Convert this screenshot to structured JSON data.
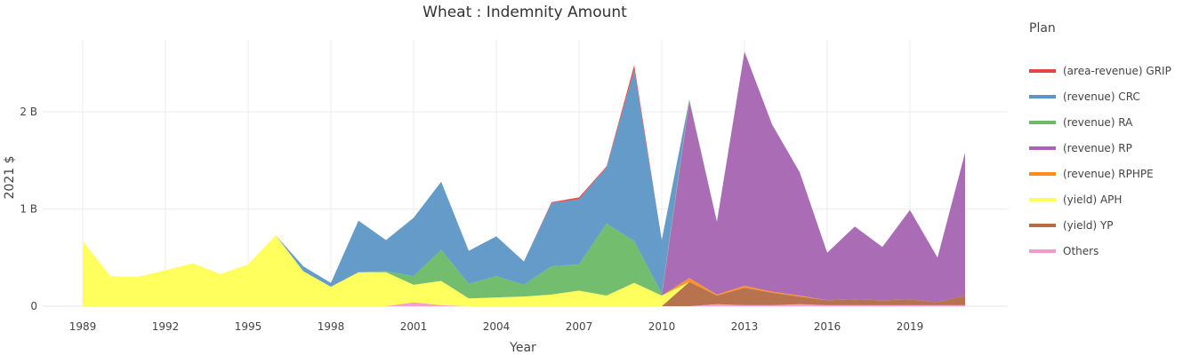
{
  "chart_data": {
    "type": "area",
    "title": "Wheat : Indemnity Amount",
    "xlabel": "Year",
    "ylabel": "2021 $",
    "legend_title": "Plan",
    "legend_position": "right",
    "grid": true,
    "stacked": true,
    "xlim": [
      1989,
      2021
    ],
    "ylim": [
      0,
      2.75
    ],
    "unit": "B",
    "x_ticks": [
      1989,
      1992,
      1995,
      1998,
      2001,
      2004,
      2007,
      2010,
      2013,
      2016,
      2019
    ],
    "x_tick_labels": [
      "1989",
      "1992",
      "1995",
      "1998",
      "2001",
      "2004",
      "2007",
      "2010",
      "2013",
      "2016",
      "2019"
    ],
    "y_ticks": [
      0,
      1,
      2
    ],
    "y_tick_labels": [
      "0",
      "1 B",
      "2 B"
    ],
    "x": [
      1989,
      1990,
      1991,
      1992,
      1993,
      1994,
      1995,
      1996,
      1997,
      1998,
      1999,
      2000,
      2001,
      2002,
      2003,
      2004,
      2005,
      2006,
      2007,
      2008,
      2009,
      2010,
      2011,
      2012,
      2013,
      2014,
      2015,
      2016,
      2017,
      2018,
      2019,
      2020,
      2021
    ],
    "series": [
      {
        "name": "Others",
        "color": "#f799c9",
        "values": [
          0,
          0,
          0,
          0,
          0,
          0,
          0,
          0,
          0,
          0,
          0,
          0,
          0.04,
          0.01,
          0,
          0,
          0,
          0,
          0,
          0,
          0,
          0,
          0,
          0.02,
          0.01,
          0.01,
          0.02,
          0.01,
          0.01,
          0.01,
          0.01,
          0.01,
          0.01
        ]
      },
      {
        "name": "(yield) YP",
        "color": "#b36c44",
        "values": [
          0,
          0,
          0,
          0,
          0,
          0,
          0,
          0,
          0,
          0,
          0,
          0,
          0,
          0,
          0,
          0,
          0,
          0,
          0,
          0,
          0,
          0,
          0.25,
          0.09,
          0.18,
          0.13,
          0.08,
          0.05,
          0.06,
          0.05,
          0.06,
          0.03,
          0.1
        ]
      },
      {
        "name": "(yield) APH",
        "color": "#ffff55",
        "values": [
          0.67,
          0.31,
          0.3,
          0.37,
          0.44,
          0.33,
          0.43,
          0.73,
          0.36,
          0.2,
          0.35,
          0.35,
          0.18,
          0.25,
          0.08,
          0.09,
          0.1,
          0.12,
          0.16,
          0.11,
          0.24,
          0.11,
          0,
          0,
          0,
          0,
          0,
          0,
          0,
          0,
          0,
          0,
          0
        ]
      },
      {
        "name": "(revenue) RPHPE",
        "color": "#ff8c1a",
        "values": [
          0,
          0,
          0,
          0,
          0,
          0,
          0,
          0,
          0,
          0,
          0,
          0,
          0,
          0,
          0,
          0,
          0,
          0,
          0,
          0,
          0,
          0,
          0.04,
          0.01,
          0.02,
          0.01,
          0.01,
          0,
          0,
          0,
          0,
          0,
          0
        ]
      },
      {
        "name": "(revenue) RP",
        "color": "#a565b1",
        "values": [
          0,
          0,
          0,
          0,
          0,
          0,
          0,
          0,
          0,
          0,
          0,
          0,
          0,
          0,
          0,
          0,
          0,
          0,
          0,
          0,
          0,
          0,
          1.82,
          0.75,
          2.41,
          1.72,
          1.27,
          0.49,
          0.75,
          0.55,
          0.92,
          0.46,
          1.47
        ]
      },
      {
        "name": "(revenue) RA",
        "color": "#6cbb66",
        "values": [
          0,
          0,
          0,
          0,
          0,
          0,
          0,
          0,
          0,
          0,
          0,
          0.01,
          0.09,
          0.32,
          0.15,
          0.22,
          0.12,
          0.29,
          0.27,
          0.74,
          0.43,
          0.02,
          0.02,
          0,
          0,
          0,
          0,
          0,
          0,
          0,
          0,
          0,
          0
        ]
      },
      {
        "name": "(revenue) CRC",
        "color": "#5d96c6",
        "values": [
          0,
          0,
          0,
          0,
          0,
          0,
          0,
          0,
          0.05,
          0.04,
          0.53,
          0.32,
          0.6,
          0.7,
          0.34,
          0.41,
          0.24,
          0.65,
          0.67,
          0.58,
          1.76,
          0.55,
          0,
          0,
          0,
          0,
          0,
          0,
          0,
          0,
          0,
          0,
          0
        ]
      },
      {
        "name": "(area-revenue) GRIP",
        "color": "#e64545",
        "values": [
          0,
          0,
          0,
          0,
          0,
          0,
          0,
          0,
          0,
          0,
          0,
          0,
          0,
          0,
          0,
          0,
          0,
          0.01,
          0.02,
          0.01,
          0.05,
          0,
          0,
          0,
          0,
          0,
          0,
          0,
          0,
          0,
          0,
          0,
          0
        ]
      }
    ],
    "legend_order": [
      "(area-revenue) GRIP",
      "(revenue) CRC",
      "(revenue) RA",
      "(revenue) RP",
      "(revenue) RPHPE",
      "(yield) APH",
      "(yield) YP",
      "Others"
    ]
  },
  "legend_colors": {
    "(area-revenue) GRIP": "#e64545",
    "(revenue) CRC": "#5d96c6",
    "(revenue) RA": "#6cbb66",
    "(revenue) RP": "#a565b1",
    "(revenue) RPHPE": "#ff8c1a",
    "(yield) APH": "#ffff55",
    "(yield) YP": "#b36c44",
    "Others": "#f799c9"
  }
}
